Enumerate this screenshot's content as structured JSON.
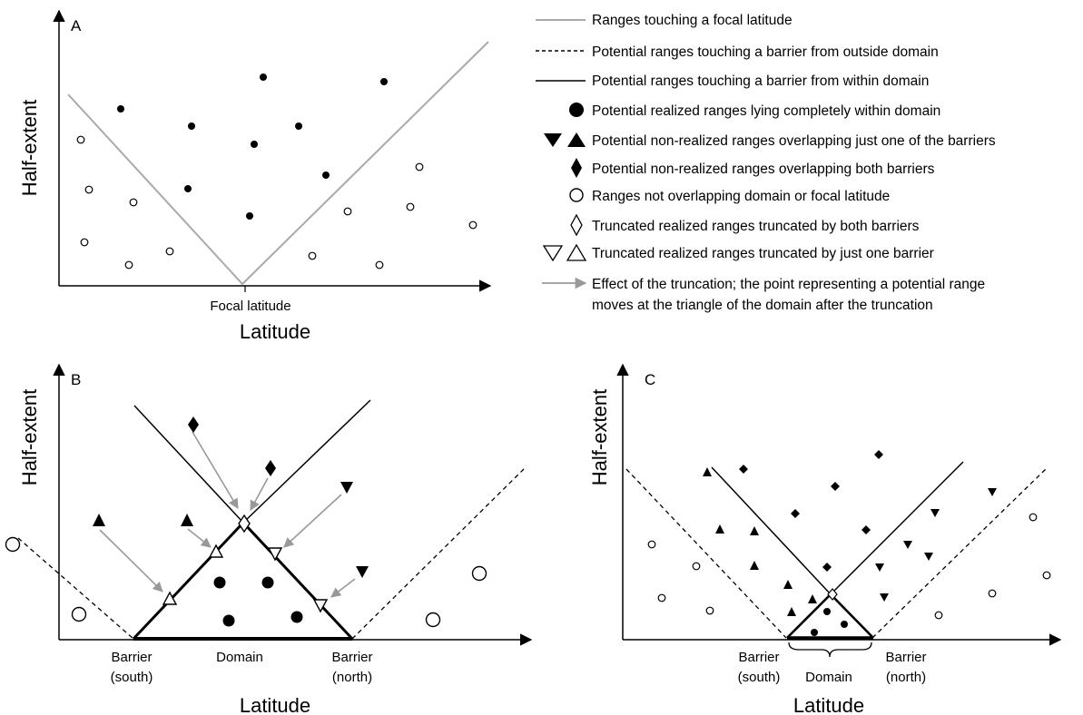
{
  "panels": {
    "a": {
      "label": "A",
      "xlabel": "Latitude",
      "ylabel": "Half-extent",
      "focal_label": "Focal latitude"
    },
    "b": {
      "label": "B",
      "xlabel": "Latitude",
      "ylabel": "Half-extent",
      "barrier_south": [
        "Barrier",
        "(south)"
      ],
      "domain": "Domain",
      "barrier_north": [
        "Barrier",
        "(north)"
      ]
    },
    "c": {
      "label": "C",
      "xlabel": "Latitude",
      "ylabel": "Half-extent",
      "barrier_south": [
        "Barrier",
        "(south)"
      ],
      "domain": "Domain",
      "barrier_north": [
        "Barrier",
        "(north)"
      ]
    }
  },
  "legend": {
    "items": [
      {
        "key": "gray-line",
        "text": "Ranges touching a focal latitude"
      },
      {
        "key": "dashed-line",
        "text": "Potential ranges touching a barrier from outside domain"
      },
      {
        "key": "solid-line",
        "text": "Potential ranges touching a barrier from within domain"
      },
      {
        "key": "filled-circle",
        "text": "Potential realized ranges lying completely within domain"
      },
      {
        "key": "filled-triangles",
        "text": "Potential non-realized ranges overlapping just one of the barriers"
      },
      {
        "key": "filled-diamond",
        "text": "Potential non-realized ranges overlapping both barriers"
      },
      {
        "key": "open-circle",
        "text": "Ranges not overlapping domain or focal latitude"
      },
      {
        "key": "open-diamond",
        "text": "Truncated realized ranges truncated by both barriers"
      },
      {
        "key": "open-triangles",
        "text": "Truncated realized ranges truncated by just one barrier"
      },
      {
        "key": "arrow",
        "text": "Effect of the truncation; the point representing a potential range",
        "text2": "moves at the triangle of the domain after the truncation"
      }
    ]
  },
  "colors": {
    "ink": "#000000",
    "gray_line": "#aaaaaa",
    "arrow": "#999999"
  }
}
